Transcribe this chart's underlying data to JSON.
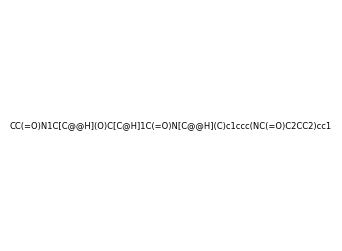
{
  "smiles": "CC(=O)N1C[C@@H](O)C[C@H]1C(=O)N[C@@H](C)c1ccc(NC(=O)C2CC2)cc1",
  "image_size": 300,
  "background_color": "#e8e8e8",
  "atom_colors": {
    "N": "#0000ff",
    "O": "#ff0000"
  },
  "title": ""
}
